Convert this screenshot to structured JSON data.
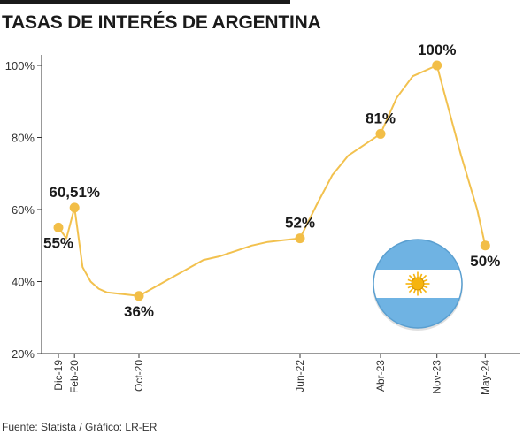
{
  "header": {
    "title": "TASAS DE INTERÉS DE ARGENTINA"
  },
  "footer": {
    "source": "Fuente: Statista / Gráfico: LR-ER"
  },
  "colors": {
    "line": "#f2c14e",
    "marker": "#f2be47",
    "axis": "#333333",
    "text": "#1a1a1a",
    "flag_blue": "#6fb3e3",
    "flag_white": "#ffffff",
    "sun": "#f6b40e"
  },
  "icons": {
    "flag": "argentina-flag-icon"
  },
  "chart_data": {
    "type": "line",
    "title": "TASAS DE INTERÉS DE ARGENTINA",
    "xlabel": "",
    "ylabel": "",
    "ylim": [
      20,
      100
    ],
    "y_ticks": [
      20,
      40,
      60,
      80,
      100
    ],
    "y_tick_labels": [
      "20%",
      "40%",
      "60%",
      "80%",
      "100%"
    ],
    "x_tick_labels": [
      "Dic-19",
      "Feb-20",
      "Oct-20",
      "Jun-22",
      "Abr-23",
      "Nov-23",
      "May-24"
    ],
    "x_tick_index": [
      0,
      2,
      10,
      30,
      40,
      47,
      53
    ],
    "grid": false,
    "legend": "none",
    "series": [
      {
        "x_index": [
          0,
          1,
          2,
          3,
          4,
          5,
          6,
          8,
          10,
          12,
          14,
          16,
          18,
          20,
          22,
          24,
          26,
          28,
          30,
          32,
          34,
          36,
          38,
          40,
          42,
          44,
          47,
          50,
          52,
          53
        ],
        "values": [
          55,
          52,
          60.51,
          44,
          40,
          38,
          37,
          36.5,
          36,
          38.5,
          41,
          43.5,
          46,
          47,
          48.5,
          50,
          51,
          51.5,
          52,
          61,
          69.5,
          75,
          78,
          81,
          91,
          97,
          100,
          75,
          60,
          50
        ]
      }
    ],
    "data_labels": [
      {
        "x_index": 0,
        "value": 55,
        "text": "55%",
        "position": "below"
      },
      {
        "x_index": 2,
        "value": 60.51,
        "text": "60,51%",
        "position": "above"
      },
      {
        "x_index": 10,
        "value": 36,
        "text": "36%",
        "position": "below"
      },
      {
        "x_index": 30,
        "value": 52,
        "text": "52%",
        "position": "above"
      },
      {
        "x_index": 40,
        "value": 81,
        "text": "81%",
        "position": "above"
      },
      {
        "x_index": 47,
        "value": 100,
        "text": "100%",
        "position": "above"
      },
      {
        "x_index": 53,
        "value": 50,
        "text": "50%",
        "position": "below"
      }
    ]
  }
}
